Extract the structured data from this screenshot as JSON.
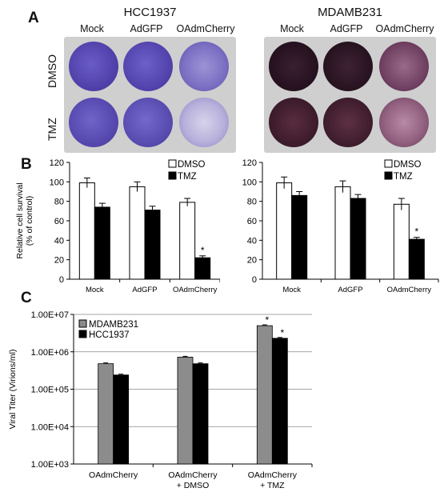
{
  "figure": {
    "panels": {
      "A": {
        "letter": "A",
        "cell_lines": [
          {
            "title": "HCC1937",
            "stain": "violet"
          },
          {
            "title": "MDAMB231",
            "stain": "dark-purple"
          }
        ],
        "columns": [
          "Mock",
          "AdGFP",
          "OAdmCherry"
        ],
        "rows": [
          "DMSO",
          "TMZ"
        ]
      },
      "B": {
        "letter": "B"
      },
      "C": {
        "letter": "C"
      }
    }
  },
  "chart_data": [
    {
      "id": "B-left",
      "type": "bar",
      "categories": [
        "Mock",
        "AdGFP",
        "OAdmCherry"
      ],
      "series": [
        {
          "name": "DMSO",
          "values": [
            99,
            95,
            79
          ],
          "errors": [
            5,
            5,
            4
          ],
          "color": "#ffffff"
        },
        {
          "name": "TMZ",
          "values": [
            74,
            71,
            22
          ],
          "errors": [
            4,
            4,
            2
          ],
          "color": "#000000"
        }
      ],
      "ylabel": "Relative cell survival\n(% of control)",
      "ylim": [
        0,
        120
      ],
      "yticks": [
        "0",
        "20",
        "40",
        "60",
        "80",
        "100",
        "120"
      ],
      "annotations": [
        {
          "category": "OAdmCherry",
          "series": "TMZ",
          "text": "*"
        }
      ],
      "legend": "top-right"
    },
    {
      "id": "B-right",
      "type": "bar",
      "categories": [
        "Mock",
        "AdGFP",
        "OAdmCherry"
      ],
      "series": [
        {
          "name": "DMSO",
          "values": [
            99,
            95,
            77
          ],
          "errors": [
            6,
            6,
            6
          ],
          "color": "#ffffff"
        },
        {
          "name": "TMZ",
          "values": [
            86,
            83,
            41
          ],
          "errors": [
            4,
            4,
            2
          ],
          "color": "#000000"
        }
      ],
      "ylim": [
        0,
        120
      ],
      "yticks": [
        "0",
        "20",
        "40",
        "60",
        "80",
        "100",
        "120"
      ],
      "annotations": [
        {
          "category": "OAdmCherry",
          "series": "TMZ",
          "text": "*"
        }
      ],
      "legend": "top-right"
    },
    {
      "id": "C",
      "type": "bar",
      "scale": "log",
      "categories": [
        "OAdmCherry",
        "OAdmCherry\n+ DMSO",
        "OAdmCherry\n+ TMZ"
      ],
      "series": [
        {
          "name": "MDAMB231",
          "values": [
            480000,
            720000,
            5000000
          ],
          "color": "#8c8c8c"
        },
        {
          "name": "HCC1937",
          "values": [
            240000,
            480000,
            2300000
          ],
          "color": "#000000"
        }
      ],
      "ylabel": "Viral Titer (Virions/ml)",
      "ylim": [
        1000,
        10000000
      ],
      "yticks": [
        "1.00E+03",
        "1.00E+04",
        "1.00E+05",
        "1.00E+06",
        "1.00E+07"
      ],
      "grid": true,
      "annotations": [
        {
          "category": "OAdmCherry\n+ TMZ",
          "series": "MDAMB231",
          "text": "*"
        },
        {
          "category": "OAdmCherry\n+ TMZ",
          "series": "HCC1937",
          "text": "*"
        }
      ],
      "legend": "top-left"
    }
  ]
}
